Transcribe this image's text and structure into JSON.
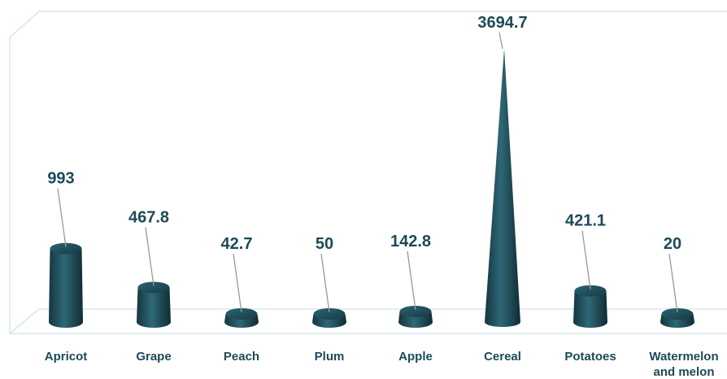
{
  "chart_data": {
    "type": "bar",
    "categories": [
      "Apricot",
      "Grape",
      "Peach",
      "Plum",
      "Apple",
      "Cereal",
      "Potatoes",
      "Watermelon and melon"
    ],
    "values": [
      993,
      467.8,
      42.7,
      50,
      142.8,
      3694.7,
      421.1,
      20
    ],
    "value_labels": [
      "993",
      "467.8",
      "42.7",
      "50",
      "142.8",
      "3694.7",
      "421.1",
      "20"
    ],
    "title": "",
    "xlabel": "",
    "ylabel": "",
    "ylim": [
      0,
      3694.7
    ],
    "grid": false,
    "legend": "none",
    "bar_shapes": [
      "cylinder",
      "cylinder",
      "cylinder",
      "cylinder",
      "cylinder",
      "cone",
      "cylinder",
      "cylinder"
    ],
    "colors": {
      "bar": "#1e4f5b",
      "bar_dark": "#0f2f38",
      "bar_light": "#3f7a88",
      "text": "#1d4a57",
      "frame": "#d9e7ef"
    }
  }
}
